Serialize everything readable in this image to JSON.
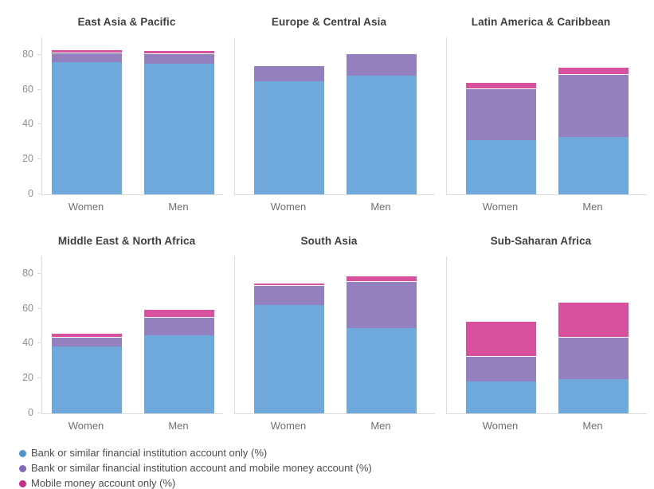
{
  "colors": {
    "bank_only": "#6FA8DB",
    "bank_and_mobile": "#9480BE",
    "mobile_only": "#D8519E",
    "legend_dots": {
      "bank_only": "#4E94CE",
      "bank_and_mobile": "#8467B8",
      "mobile_only": "#C62C8C"
    },
    "axis_line": "#DCDCDC",
    "tick_label": "#8E8E8E",
    "category_label": "#6F6F6F",
    "title": "#3F3F3F"
  },
  "legend": {
    "items": [
      {
        "key": "bank_only",
        "label": "Bank or similar financial institution account only (%)"
      },
      {
        "key": "bank_and_mobile",
        "label": "Bank or similar financial institution account and mobile money account (%)"
      },
      {
        "key": "mobile_only",
        "label": "Mobile money account only (%)"
      }
    ]
  },
  "chart_data": {
    "type": "bar",
    "stacked": true,
    "categories": [
      "Women",
      "Men"
    ],
    "y_ticks": [
      0,
      20,
      40,
      60,
      80
    ],
    "ylim": [
      0,
      90
    ],
    "grid": false,
    "legend_position": "bottom-left",
    "series_keys": [
      "bank_only",
      "bank_and_mobile",
      "mobile_only"
    ],
    "series_labels": [
      "Bank or similar financial institution account only (%)",
      "Bank or similar financial institution account and mobile money account (%)",
      "Mobile money account only (%)"
    ],
    "charts": [
      {
        "title": "East Asia & Pacific",
        "stacks": {
          "Women": [
            76,
            5.5,
            1.5
          ],
          "Men": [
            75,
            6,
            1.5
          ]
        }
      },
      {
        "title": "Europe & Central Asia",
        "stacks": {
          "Women": [
            65,
            9,
            0
          ],
          "Men": [
            68,
            13,
            0
          ]
        }
      },
      {
        "title": "Latin America & Caribbean",
        "stacks": {
          "Women": [
            31,
            30,
            3.5
          ],
          "Men": [
            33,
            36,
            4
          ]
        }
      },
      {
        "title": "Middle East & North Africa",
        "stacks": {
          "Women": [
            38.5,
            5.5,
            2
          ],
          "Men": [
            45,
            10.5,
            4.5
          ]
        }
      },
      {
        "title": "South Asia",
        "stacks": {
          "Women": [
            62,
            11.5,
            1.5
          ],
          "Men": [
            49,
            27,
            3
          ]
        }
      },
      {
        "title": "Sub-Saharan Africa",
        "stacks": {
          "Women": [
            18.5,
            14.5,
            20
          ],
          "Men": [
            19.5,
            24.5,
            20
          ]
        }
      }
    ]
  }
}
